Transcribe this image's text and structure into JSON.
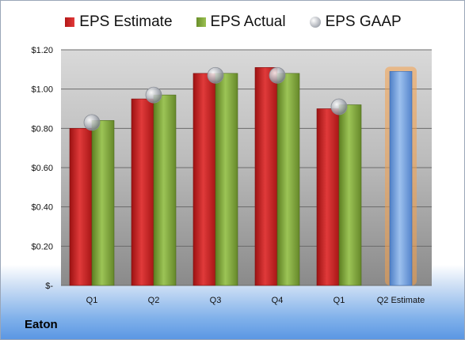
{
  "company": "Eaton",
  "chart_data": {
    "type": "bar",
    "categories": [
      "Q1",
      "Q2",
      "Q3",
      "Q4",
      "Q1",
      "Q2 Estimate"
    ],
    "series": [
      {
        "name": "EPS Estimate",
        "values": [
          0.8,
          0.95,
          1.08,
          1.11,
          0.9,
          null
        ]
      },
      {
        "name": "EPS Actual",
        "values": [
          0.84,
          0.97,
          1.08,
          1.08,
          0.92,
          null
        ]
      },
      {
        "name": "EPS GAAP",
        "type": "scatter",
        "values": [
          0.83,
          0.97,
          1.07,
          1.07,
          0.91,
          null
        ]
      }
    ],
    "projection": {
      "category": "Q2 Estimate",
      "value": 1.09
    },
    "yticks": [
      "$-",
      "$0.20",
      "$0.40",
      "$0.60",
      "$0.80",
      "$1.00",
      "$1.20"
    ],
    "ylim": [
      0,
      1.2
    ],
    "grid": true,
    "legend": "top",
    "colors": {
      "estimate": "#c62828",
      "actual": "#7ea33a",
      "gaap": "#b5b8bf",
      "projection": "#5b8fd6",
      "glow": "#f5a04a"
    }
  }
}
